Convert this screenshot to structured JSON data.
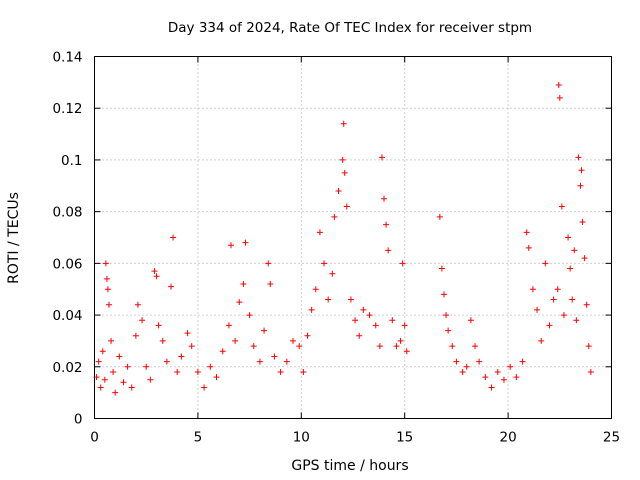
{
  "chart_data": {
    "type": "scatter",
    "title": "Day 334 of 2024, Rate Of TEC Index for receiver stpm",
    "xlabel": "GPS time / hours",
    "ylabel": "ROTI / TECUs",
    "xlim": [
      0,
      25
    ],
    "ylim": [
      0,
      0.14
    ],
    "xticks": [
      0,
      5,
      10,
      15,
      20,
      25
    ],
    "xtick_labels": [
      "0",
      "5",
      "10",
      "15",
      "20",
      "25"
    ],
    "yticks": [
      0,
      0.02,
      0.04,
      0.06,
      0.08,
      0.1,
      0.12,
      0.14
    ],
    "ytick_labels": [
      "0",
      "0.02",
      "0.04",
      "0.06",
      "0.08",
      "0.1",
      "0.12",
      "0.14"
    ],
    "grid": true,
    "marker": "+",
    "color": "#ff0000",
    "series": [
      {
        "name": "ROTI",
        "points": [
          [
            0.1,
            0.016
          ],
          [
            0.2,
            0.022
          ],
          [
            0.3,
            0.012
          ],
          [
            0.4,
            0.026
          ],
          [
            0.5,
            0.015
          ],
          [
            0.55,
            0.06
          ],
          [
            0.6,
            0.054
          ],
          [
            0.65,
            0.05
          ],
          [
            0.7,
            0.044
          ],
          [
            0.8,
            0.03
          ],
          [
            0.9,
            0.018
          ],
          [
            1.0,
            0.01
          ],
          [
            1.2,
            0.024
          ],
          [
            1.4,
            0.014
          ],
          [
            1.6,
            0.02
          ],
          [
            1.8,
            0.012
          ],
          [
            2.0,
            0.032
          ],
          [
            2.1,
            0.044
          ],
          [
            2.3,
            0.038
          ],
          [
            2.5,
            0.02
          ],
          [
            2.7,
            0.015
          ],
          [
            2.9,
            0.057
          ],
          [
            3.0,
            0.055
          ],
          [
            3.1,
            0.036
          ],
          [
            3.3,
            0.03
          ],
          [
            3.5,
            0.022
          ],
          [
            3.7,
            0.051
          ],
          [
            3.8,
            0.07
          ],
          [
            4.0,
            0.018
          ],
          [
            4.2,
            0.024
          ],
          [
            4.5,
            0.033
          ],
          [
            4.7,
            0.028
          ],
          [
            5.0,
            0.018
          ],
          [
            5.3,
            0.012
          ],
          [
            5.6,
            0.02
          ],
          [
            5.9,
            0.016
          ],
          [
            6.2,
            0.026
          ],
          [
            6.5,
            0.036
          ],
          [
            6.6,
            0.067
          ],
          [
            6.8,
            0.03
          ],
          [
            7.0,
            0.045
          ],
          [
            7.2,
            0.052
          ],
          [
            7.3,
            0.068
          ],
          [
            7.5,
            0.04
          ],
          [
            7.7,
            0.028
          ],
          [
            8.0,
            0.022
          ],
          [
            8.2,
            0.034
          ],
          [
            8.4,
            0.06
          ],
          [
            8.5,
            0.052
          ],
          [
            8.7,
            0.024
          ],
          [
            9.0,
            0.018
          ],
          [
            9.3,
            0.022
          ],
          [
            9.6,
            0.03
          ],
          [
            9.9,
            0.028
          ],
          [
            10.1,
            0.018
          ],
          [
            10.3,
            0.032
          ],
          [
            10.5,
            0.042
          ],
          [
            10.7,
            0.05
          ],
          [
            10.9,
            0.072
          ],
          [
            11.1,
            0.06
          ],
          [
            11.3,
            0.046
          ],
          [
            11.5,
            0.056
          ],
          [
            11.6,
            0.078
          ],
          [
            11.8,
            0.088
          ],
          [
            12.0,
            0.1
          ],
          [
            12.05,
            0.114
          ],
          [
            12.1,
            0.095
          ],
          [
            12.2,
            0.082
          ],
          [
            12.4,
            0.046
          ],
          [
            12.6,
            0.038
          ],
          [
            12.8,
            0.032
          ],
          [
            13.0,
            0.042
          ],
          [
            13.3,
            0.04
          ],
          [
            13.6,
            0.036
          ],
          [
            13.8,
            0.028
          ],
          [
            13.9,
            0.101
          ],
          [
            14.0,
            0.085
          ],
          [
            14.1,
            0.075
          ],
          [
            14.2,
            0.065
          ],
          [
            14.4,
            0.038
          ],
          [
            14.6,
            0.028
          ],
          [
            14.8,
            0.03
          ],
          [
            14.9,
            0.06
          ],
          [
            15.0,
            0.036
          ],
          [
            15.1,
            0.026
          ],
          [
            16.7,
            0.078
          ],
          [
            16.8,
            0.058
          ],
          [
            16.9,
            0.048
          ],
          [
            17.0,
            0.04
          ],
          [
            17.1,
            0.034
          ],
          [
            17.3,
            0.028
          ],
          [
            17.5,
            0.022
          ],
          [
            17.8,
            0.018
          ],
          [
            18.0,
            0.02
          ],
          [
            18.2,
            0.038
          ],
          [
            18.4,
            0.028
          ],
          [
            18.6,
            0.022
          ],
          [
            18.9,
            0.016
          ],
          [
            19.2,
            0.012
          ],
          [
            19.5,
            0.018
          ],
          [
            19.8,
            0.015
          ],
          [
            20.1,
            0.02
          ],
          [
            20.4,
            0.016
          ],
          [
            20.7,
            0.022
          ],
          [
            20.9,
            0.072
          ],
          [
            21.0,
            0.066
          ],
          [
            21.2,
            0.05
          ],
          [
            21.4,
            0.042
          ],
          [
            21.6,
            0.03
          ],
          [
            21.8,
            0.06
          ],
          [
            22.0,
            0.036
          ],
          [
            22.2,
            0.046
          ],
          [
            22.4,
            0.05
          ],
          [
            22.45,
            0.129
          ],
          [
            22.5,
            0.124
          ],
          [
            22.6,
            0.082
          ],
          [
            22.7,
            0.04
          ],
          [
            22.9,
            0.07
          ],
          [
            23.0,
            0.058
          ],
          [
            23.1,
            0.046
          ],
          [
            23.2,
            0.065
          ],
          [
            23.3,
            0.038
          ],
          [
            23.4,
            0.101
          ],
          [
            23.5,
            0.09
          ],
          [
            23.55,
            0.096
          ],
          [
            23.6,
            0.076
          ],
          [
            23.7,
            0.062
          ],
          [
            23.8,
            0.044
          ],
          [
            23.9,
            0.028
          ],
          [
            24.0,
            0.018
          ]
        ]
      }
    ]
  }
}
